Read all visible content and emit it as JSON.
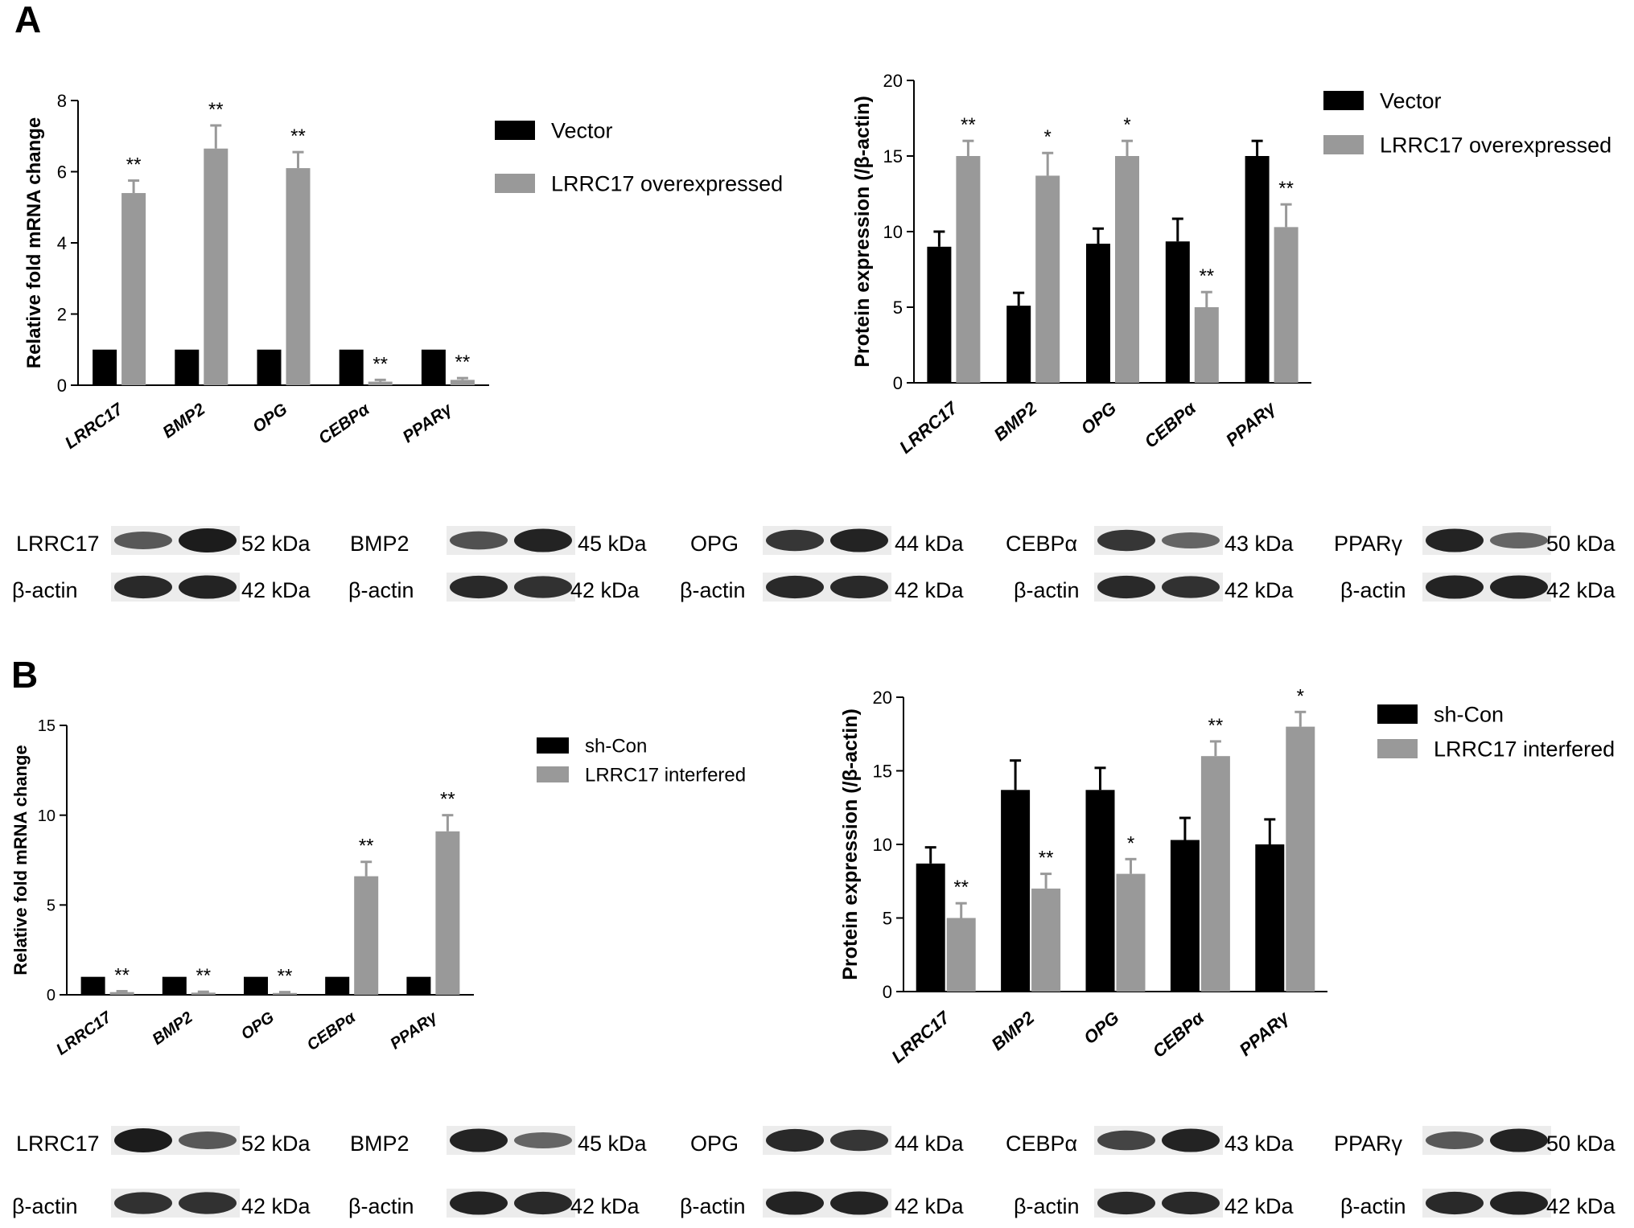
{
  "panels": [
    {
      "letter": "A",
      "mrna": {
        "type": "bar",
        "ylabel": "Relative fold mRNA change",
        "ylim": [
          0,
          8
        ],
        "yticks": [
          "0",
          "2",
          "4",
          "6",
          "8"
        ],
        "categories": [
          "LRRC17",
          "BMP2",
          "OPG",
          "CEBPα",
          "PPARγ"
        ],
        "series": [
          {
            "name": "Vector",
            "values": [
              1,
              1,
              1,
              1,
              1
            ],
            "errors": [
              0,
              0,
              0,
              0,
              0
            ]
          },
          {
            "name": "LRRC17 overexpressed",
            "values": [
              5.4,
              6.65,
              6.1,
              0.1,
              0.15
            ],
            "errors": [
              0.35,
              0.65,
              0.45,
              0.05,
              0.05
            ]
          }
        ],
        "significance": [
          "**",
          "**",
          "**",
          "**",
          "**"
        ]
      },
      "protein": {
        "type": "bar",
        "ylabel": "Protein expression (/β-actin)",
        "ylim": [
          0,
          20
        ],
        "yticks": [
          "0",
          "5",
          "10",
          "15",
          "20"
        ],
        "categories": [
          "LRRC17",
          "BMP2",
          "OPG",
          "CEBPα",
          "PPARγ"
        ],
        "series": [
          {
            "name": "Vector",
            "values": [
              9,
              5.1,
              9.2,
              9.35,
              15
            ],
            "errors": [
              1.0,
              0.85,
              1.0,
              1.5,
              1.0
            ]
          },
          {
            "name": "LRRC17 overexpressed",
            "values": [
              15,
              13.7,
              15,
              5,
              10.3
            ],
            "errors": [
              1.0,
              1.5,
              1.0,
              1.0,
              1.5
            ]
          }
        ],
        "significance": [
          "**",
          "*",
          "*",
          "**",
          "**"
        ]
      },
      "blots": [
        {
          "protein": "LRRC17",
          "protein_kda": "52 kDa",
          "control": "β-actin",
          "control_kda": "42 kDa",
          "bands": [
            0.55,
            1.0
          ],
          "control_bands": [
            0.9,
            0.95
          ]
        },
        {
          "protein": "BMP2",
          "protein_kda": "45 kDa",
          "control": "β-actin",
          "control_kda": "42 kDa",
          "bands": [
            0.6,
            0.95
          ],
          "control_bands": [
            0.9,
            0.85
          ]
        },
        {
          "protein": "OPG",
          "protein_kda": "44 kDa",
          "control": "β-actin",
          "control_kda": "42 kDa",
          "bands": [
            0.8,
            0.95
          ],
          "control_bands": [
            0.9,
            0.9
          ]
        },
        {
          "protein": "CEBPα",
          "protein_kda": "43 kDa",
          "control": "β-actin",
          "control_kda": "42 kDa",
          "bands": [
            0.8,
            0.45
          ],
          "control_bands": [
            0.9,
            0.85
          ]
        },
        {
          "protein": "PPARγ",
          "protein_kda": "50 kDa",
          "control": "β-actin",
          "control_kda": "42 kDa",
          "bands": [
            0.95,
            0.45
          ],
          "control_bands": [
            0.95,
            0.95
          ]
        }
      ]
    },
    {
      "letter": "B",
      "mrna": {
        "type": "bar",
        "ylabel": "Relative fold mRNA change",
        "ylim": [
          0,
          15
        ],
        "yticks": [
          "0",
          "5",
          "10",
          "15"
        ],
        "categories": [
          "LRRC17",
          "BMP2",
          "OPG",
          "CEBPα",
          "PPARγ"
        ],
        "series": [
          {
            "name": "sh-Con",
            "values": [
              1,
              1,
              1,
              1,
              1
            ],
            "errors": [
              0,
              0,
              0,
              0,
              0
            ]
          },
          {
            "name": "LRRC17 interfered",
            "values": [
              0.15,
              0.12,
              0.1,
              6.6,
              9.1
            ],
            "errors": [
              0.05,
              0.05,
              0.05,
              0.8,
              0.9
            ]
          }
        ],
        "significance": [
          "**",
          "**",
          "**",
          "**",
          "**"
        ]
      },
      "protein": {
        "type": "bar",
        "ylabel": "Protein expression (/β-actin)",
        "ylim": [
          0,
          20
        ],
        "yticks": [
          "0",
          "5",
          "10",
          "15",
          "20"
        ],
        "categories": [
          "LRRC17",
          "BMP2",
          "OPG",
          "CEBPα",
          "PPARγ"
        ],
        "series": [
          {
            "name": "sh-Con",
            "values": [
              8.7,
              13.7,
              13.7,
              10.3,
              10
            ],
            "errors": [
              1.1,
              2.0,
              1.5,
              1.5,
              1.7
            ]
          },
          {
            "name": "LRRC17 interfered",
            "values": [
              5,
              7,
              8,
              16,
              18
            ],
            "errors": [
              1.0,
              1.0,
              1.0,
              1.0,
              1.0
            ]
          }
        ],
        "significance": [
          "**",
          "**",
          "*",
          "**",
          "*"
        ]
      },
      "blots": [
        {
          "protein": "LRRC17",
          "protein_kda": "52 kDa",
          "control": "β-actin",
          "control_kda": "42 kDa",
          "bands": [
            1.0,
            0.55
          ],
          "control_bands": [
            0.85,
            0.85
          ]
        },
        {
          "protein": "BMP2",
          "protein_kda": "45 kDa",
          "control": "β-actin",
          "control_kda": "42 kDa",
          "bands": [
            0.95,
            0.45
          ],
          "control_bands": [
            0.95,
            0.9
          ]
        },
        {
          "protein": "OPG",
          "protein_kda": "44 kDa",
          "control": "β-actin",
          "control_kda": "42 kDa",
          "bands": [
            0.9,
            0.8
          ],
          "control_bands": [
            0.95,
            0.95
          ]
        },
        {
          "protein": "CEBPα",
          "protein_kda": "43 kDa",
          "control": "β-actin",
          "control_kda": "42 kDa",
          "bands": [
            0.7,
            0.95
          ],
          "control_bands": [
            0.9,
            0.9
          ]
        },
        {
          "protein": "PPARγ",
          "protein_kda": "50 kDa",
          "control": "β-actin",
          "control_kda": "42 kDa",
          "bands": [
            0.55,
            0.95
          ],
          "control_bands": [
            0.9,
            0.95
          ]
        }
      ]
    }
  ],
  "colors": {
    "series1": "#000000",
    "series2": "#999999",
    "axis": "#000000",
    "blot_bg": "#ececec"
  }
}
